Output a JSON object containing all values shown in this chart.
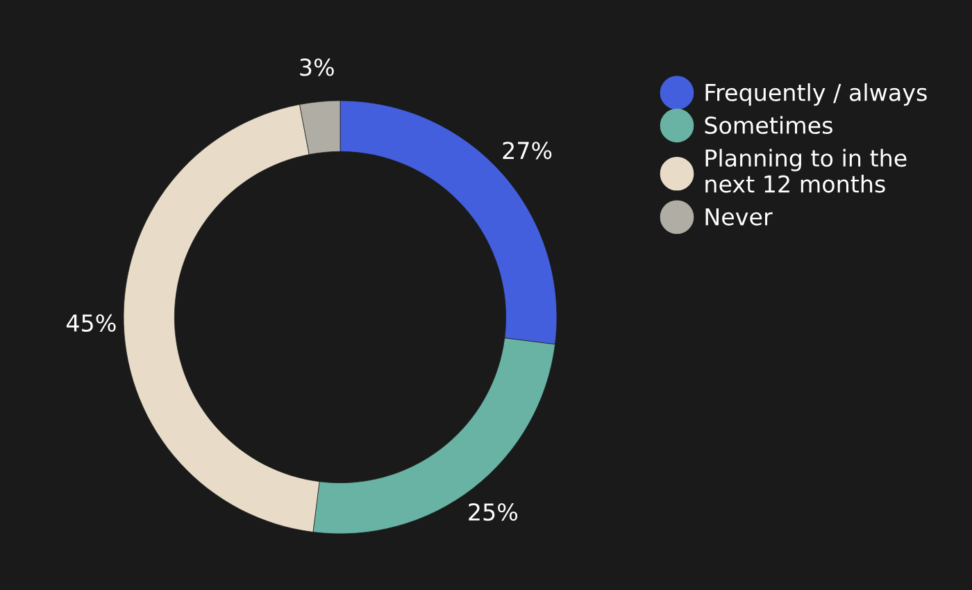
{
  "chart_data": {
    "type": "donut",
    "categories": [
      "Frequently / always",
      "Sometimes",
      "Planning to in the\nnext 12 months",
      "Never"
    ],
    "values": [
      27,
      25,
      45,
      3
    ],
    "colors": [
      "#435fde",
      "#69b3a4",
      "#e8dcc9",
      "#b0ada4"
    ],
    "value_labels": [
      "27%",
      "25%",
      "45%",
      "3%"
    ],
    "legend": "top right"
  }
}
